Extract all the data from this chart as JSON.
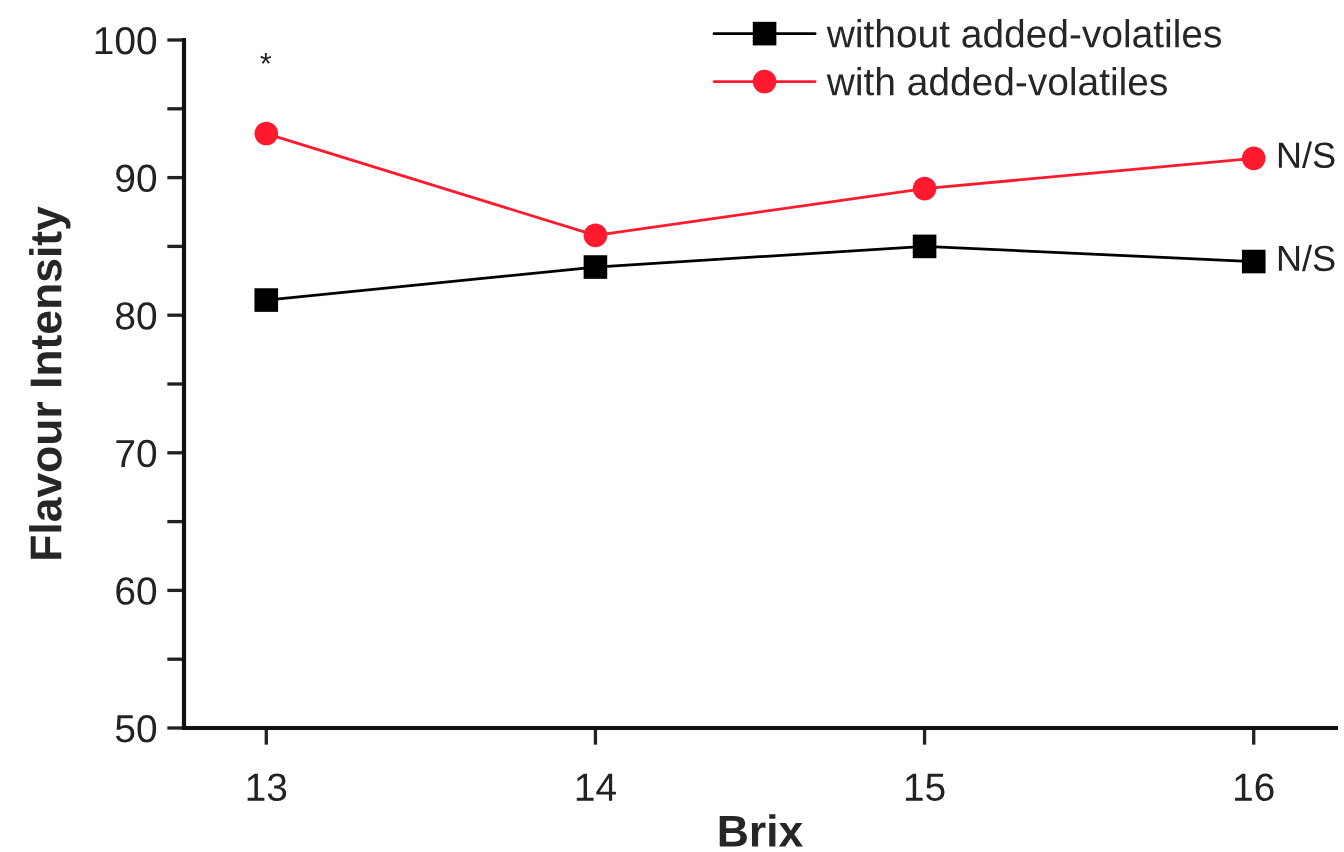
{
  "chart_data": {
    "type": "line",
    "xlabel": "Brix",
    "ylabel": "Flavour Intensity",
    "x": [
      13,
      14,
      15,
      16
    ],
    "series": [
      {
        "name": "without added-volatiles",
        "color": "#000000",
        "marker": "square",
        "values": [
          81.1,
          83.5,
          85.0,
          83.9
        ]
      },
      {
        "name": "with added-volatiles",
        "color": "#ff1a2e",
        "marker": "circle",
        "values": [
          93.2,
          85.8,
          89.2,
          91.4
        ]
      }
    ],
    "xlim": [
      12.75,
      16.25
    ],
    "xticks": [
      13,
      14,
      15,
      16
    ],
    "ylim": [
      50,
      100
    ],
    "yticks": [
      50,
      {
        "value": 55,
        "label": null
      },
      60,
      {
        "value": 65,
        "label": null
      },
      70,
      {
        "value": 75,
        "label": null
      },
      80,
      {
        "value": 85,
        "label": null
      },
      90,
      {
        "value": 95,
        "label": null
      },
      100
    ],
    "annotations": [
      "*",
      {
        "text": "N/S",
        "x": 16,
        "y": 91.4
      },
      {
        "text": "N/S",
        "x": 16,
        "y": 83.9
      }
    ],
    "grid": false,
    "legend": "top right",
    "line_style": "solid"
  }
}
